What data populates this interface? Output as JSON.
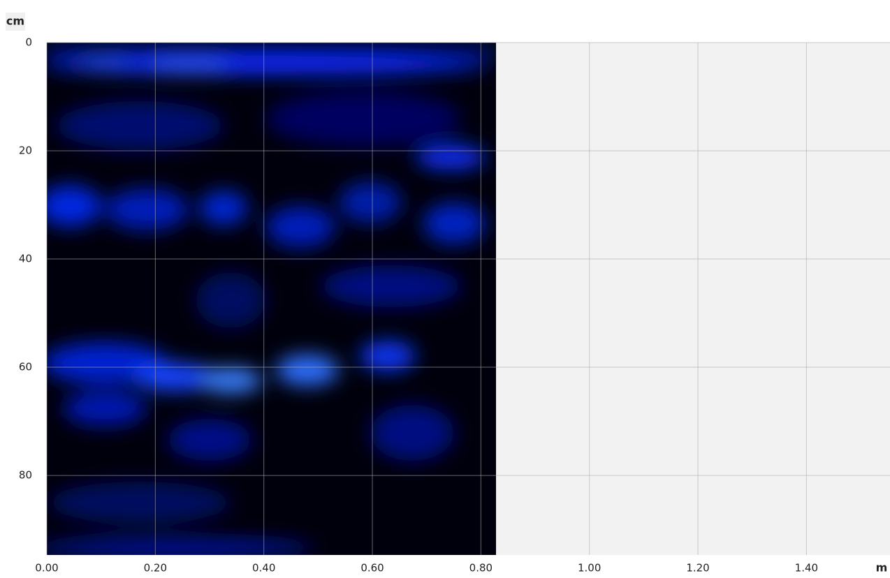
{
  "chart_data": {
    "type": "heatmap",
    "x_label": "m",
    "y_label": "cm",
    "xlim": [
      0,
      1.554
    ],
    "ylim": [
      0,
      94.7
    ],
    "y_reversed": true,
    "xticks": [
      {
        "value": 0,
        "label": "0.00"
      },
      {
        "value": 0.2,
        "label": "0.20"
      },
      {
        "value": 0.4,
        "label": "0.40"
      },
      {
        "value": 0.6,
        "label": "0.60"
      },
      {
        "value": 0.8,
        "label": "0.80"
      },
      {
        "value": 1.0,
        "label": "1.00"
      },
      {
        "value": 1.2,
        "label": "1.20"
      },
      {
        "value": 1.4,
        "label": "1.40"
      }
    ],
    "yticks": [
      0,
      20,
      40,
      60,
      80
    ],
    "scan_extent": [
      0,
      0.828
    ],
    "grid": true
  }
}
